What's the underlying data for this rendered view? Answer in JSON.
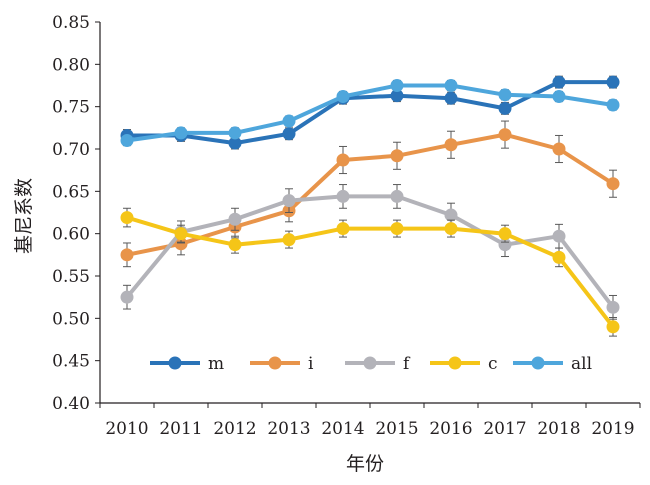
{
  "chart_data": {
    "type": "line",
    "xlabel": "年份",
    "ylabel": "基尼系数",
    "ylim": [
      0.4,
      0.85
    ],
    "yticks": [
      "0.40",
      "0.45",
      "0.50",
      "0.55",
      "0.60",
      "0.65",
      "0.70",
      "0.75",
      "0.80",
      "0.85"
    ],
    "categories": [
      "2010",
      "2011",
      "2012",
      "2013",
      "2014",
      "2015",
      "2016",
      "2017",
      "2018",
      "2019"
    ],
    "grid": false,
    "error_bars": true,
    "legend_position": "bottom-inside",
    "series": [
      {
        "name": "m",
        "color": "#2a73b8",
        "values": [
          0.716,
          0.716,
          0.707,
          0.718,
          0.76,
          0.763,
          0.76,
          0.748,
          0.779,
          0.779
        ],
        "errors": [
          0.007,
          0.007,
          0.007,
          0.007,
          0.007,
          0.007,
          0.007,
          0.007,
          0.007,
          0.007
        ]
      },
      {
        "name": "i",
        "color": "#e8944a",
        "values": [
          0.575,
          0.588,
          0.608,
          0.627,
          0.687,
          0.692,
          0.705,
          0.717,
          0.7,
          0.659
        ],
        "errors": [
          0.014,
          0.013,
          0.013,
          0.013,
          0.016,
          0.016,
          0.016,
          0.016,
          0.016,
          0.016
        ]
      },
      {
        "name": "f",
        "color": "#b3b3b9",
        "values": [
          0.525,
          0.602,
          0.617,
          0.639,
          0.644,
          0.644,
          0.622,
          0.587,
          0.597,
          0.513
        ],
        "errors": [
          0.014,
          0.013,
          0.013,
          0.014,
          0.014,
          0.014,
          0.014,
          0.014,
          0.014,
          0.014
        ]
      },
      {
        "name": "c",
        "color": "#f5c518",
        "values": [
          0.619,
          0.6,
          0.587,
          0.593,
          0.606,
          0.606,
          0.606,
          0.6,
          0.572,
          0.49
        ],
        "errors": [
          0.011,
          0.01,
          0.01,
          0.01,
          0.01,
          0.01,
          0.01,
          0.01,
          0.011,
          0.011
        ]
      },
      {
        "name": "all",
        "color": "#4ea6dc",
        "values": [
          0.71,
          0.719,
          0.719,
          0.733,
          0.762,
          0.775,
          0.775,
          0.764,
          0.762,
          0.752
        ],
        "errors": [
          0.006,
          0.006,
          0.006,
          0.006,
          0.006,
          0.006,
          0.006,
          0.006,
          0.006,
          0.006
        ]
      }
    ]
  }
}
